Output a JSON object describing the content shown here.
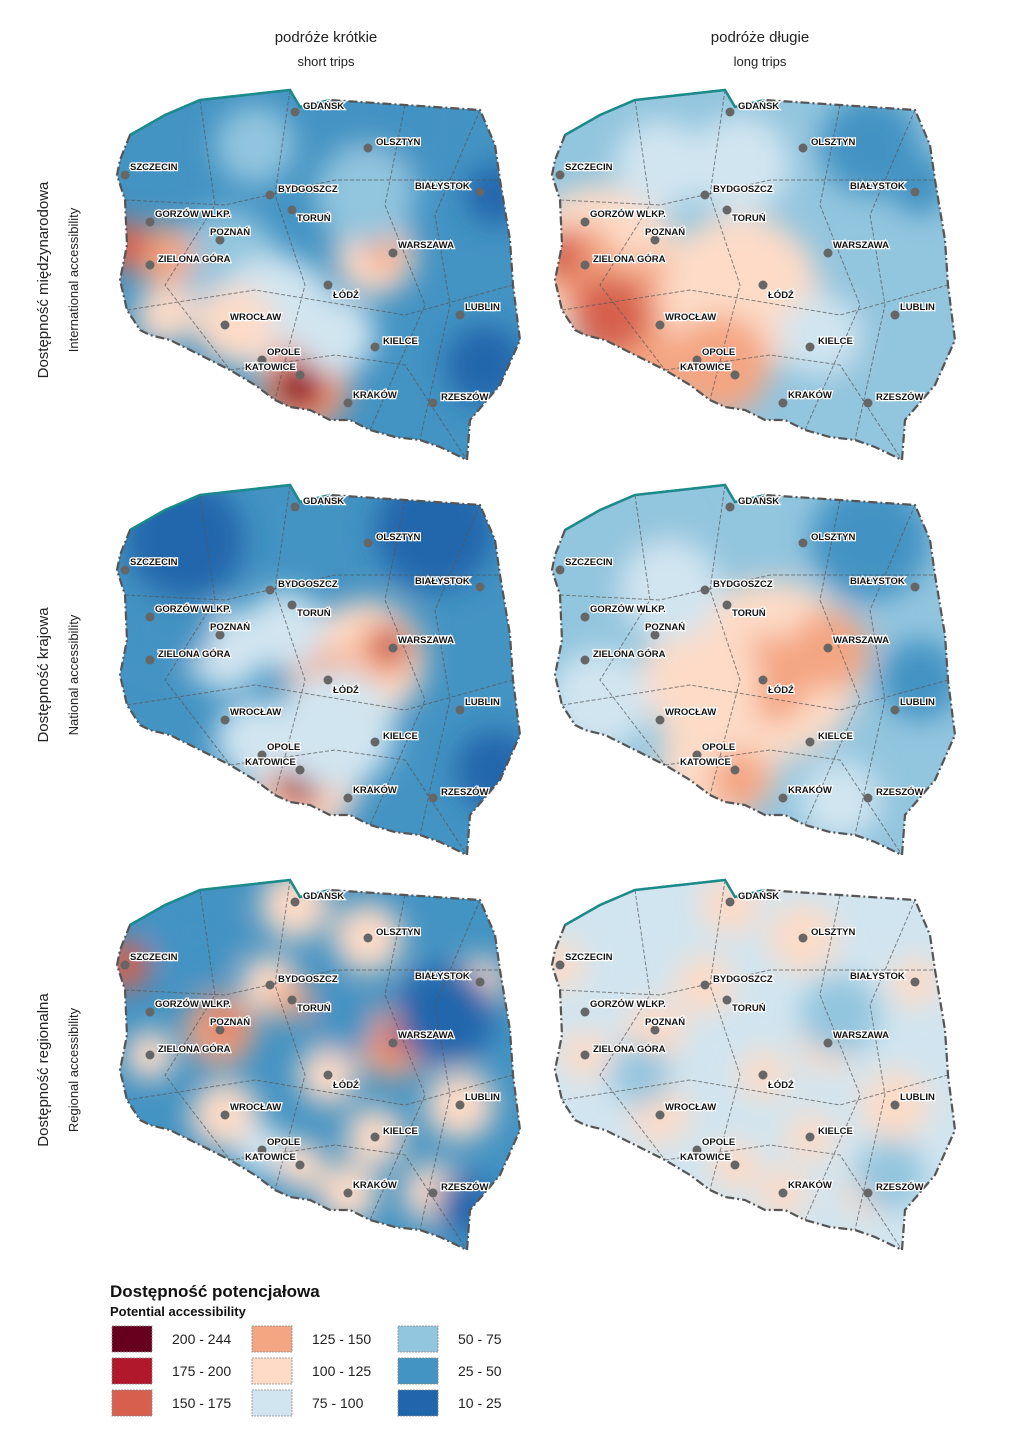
{
  "columns": [
    {
      "title": "podróże krótkie",
      "subtitle": "short trips"
    },
    {
      "title": "podróże długie",
      "subtitle": "long trips"
    }
  ],
  "rows": [
    {
      "title": "Dostępność międzynarodowa",
      "subtitle": "International accessibility"
    },
    {
      "title": "Dostępność krajowa",
      "subtitle": "National accessibility"
    },
    {
      "title": "Dostępność regionalna",
      "subtitle": "Regional accessibility"
    }
  ],
  "cities": [
    "GDAŃSK",
    "OLSZTYN",
    "SZCZECIN",
    "BYDGOSZCZ",
    "BIAŁYSTOK",
    "GORZÓW WLKP.",
    "TORUŃ",
    "POZNAŃ",
    "WARSZAWA",
    "ZIELONA GÓRA",
    "ŁÓDŹ",
    "LUBLIN",
    "WROCŁAW",
    "KIELCE",
    "OPOLE",
    "KATOWICE",
    "KRAKÓW",
    "RZESZÓW"
  ],
  "legend": {
    "title": "Dostępność potencjałowa",
    "subtitle": "Potential accessibility",
    "classes": [
      {
        "label": "200 - 244",
        "color": "#67001f"
      },
      {
        "label": "175 - 200",
        "color": "#b2182b"
      },
      {
        "label": "150 - 175",
        "color": "#d6604d"
      },
      {
        "label": "125 - 150",
        "color": "#f4a582"
      },
      {
        "label": "100 - 125",
        "color": "#fddbc7"
      },
      {
        "label": "75 - 100",
        "color": "#d1e5f0"
      },
      {
        "label": "50 - 75",
        "color": "#92c5de"
      },
      {
        "label": "25 - 50",
        "color": "#4393c3"
      },
      {
        "label": "10 - 25",
        "color": "#2166ac"
      }
    ]
  }
}
